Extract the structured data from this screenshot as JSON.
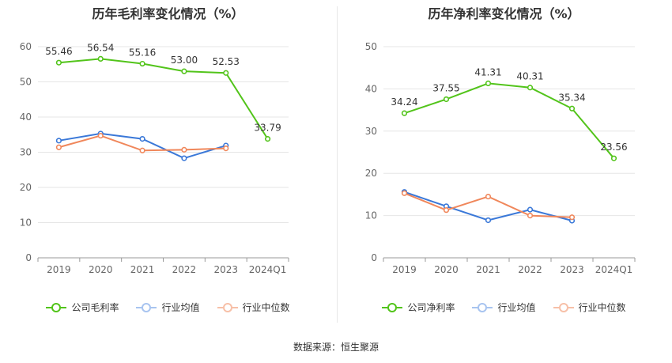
{
  "chart_data": [
    {
      "type": "line",
      "title": "历年毛利率变化情况（%）",
      "categories": [
        "2019",
        "2020",
        "2021",
        "2022",
        "2023",
        "2024Q1"
      ],
      "ylim": [
        0,
        60
      ],
      "yticks": [
        0,
        10,
        20,
        30,
        40,
        50,
        60
      ],
      "series": [
        {
          "name": "公司毛利率",
          "color": "#52c41a",
          "values": [
            55.46,
            56.54,
            55.16,
            53.0,
            52.53,
            33.79
          ],
          "labels": [
            "55.46",
            "56.54",
            "55.16",
            "53.00",
            "52.53",
            "33.79"
          ]
        },
        {
          "name": "行业均值",
          "color": "#3a78d8",
          "values": [
            33.3,
            35.3,
            33.8,
            28.3,
            31.9,
            null
          ]
        },
        {
          "name": "行业中位数",
          "color": "#f0875b",
          "values": [
            31.4,
            34.7,
            30.5,
            30.7,
            31.1,
            null
          ]
        }
      ]
    },
    {
      "type": "line",
      "title": "历年净利率变化情况（%）",
      "categories": [
        "2019",
        "2020",
        "2021",
        "2022",
        "2023",
        "2024Q1"
      ],
      "ylim": [
        0,
        50
      ],
      "yticks": [
        0,
        10,
        20,
        30,
        40,
        50
      ],
      "series": [
        {
          "name": "公司净利率",
          "color": "#52c41a",
          "values": [
            34.24,
            37.55,
            41.31,
            40.31,
            35.34,
            23.56
          ],
          "labels": [
            "34.24",
            "37.55",
            "41.31",
            "40.31",
            "35.34",
            "23.56"
          ]
        },
        {
          "name": "行业均值",
          "color": "#3a78d8",
          "values": [
            15.6,
            12.2,
            8.9,
            11.4,
            8.8,
            null
          ]
        },
        {
          "name": "行业中位数",
          "color": "#f0875b",
          "values": [
            15.3,
            11.3,
            14.5,
            10.0,
            9.6,
            null
          ]
        }
      ]
    }
  ],
  "source": "数据来源：恒生聚源"
}
